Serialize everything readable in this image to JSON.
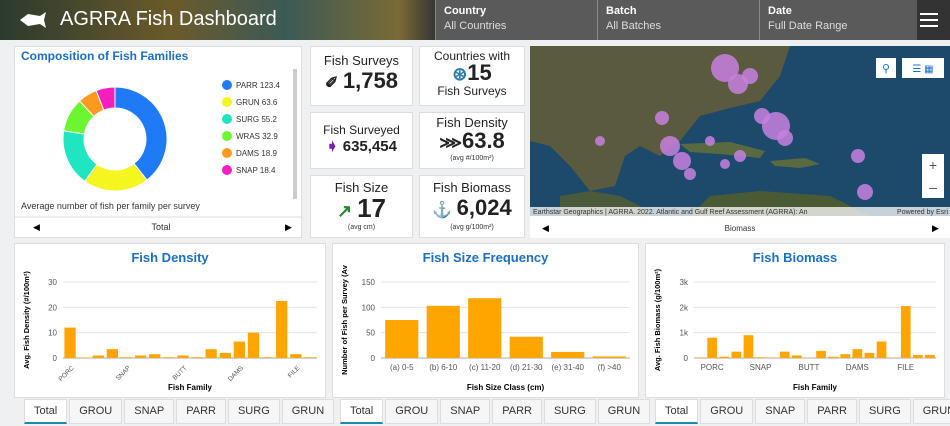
{
  "header": {
    "title": "AGRRA Fish Dashboard",
    "filters": [
      {
        "label": "Country",
        "value": "All Countries"
      },
      {
        "label": "Batch",
        "value": "All Batches"
      },
      {
        "label": "Date",
        "value": "Full Date Range"
      }
    ]
  },
  "cards": [
    {
      "title": "Fish Surveys",
      "value": "1,758"
    },
    {
      "title": "Countries with",
      "value": "15",
      "subtitle": "Fish Surveys"
    },
    {
      "title": "Fish Surveyed",
      "value": "635,454"
    },
    {
      "title": "Fish Density",
      "value": "63.8",
      "subtitle": "(avg #/100m²)"
    },
    {
      "title": "Fish Size",
      "value": "17",
      "subtitle": "(avg cm)"
    },
    {
      "title": "Fish Biomass",
      "value": "6,024",
      "subtitle": "(avg g/100m²)"
    }
  ],
  "map": {
    "attribution": "Earthstar Geographics | AGRRA. 2022. Atlantic and Gulf Reef Assessment (AGRRA): An",
    "powered_by": "Powered by Esri",
    "nav_label": "Biomass"
  },
  "chart_data": [
    {
      "type": "pie",
      "title": "Composition of Fish Families",
      "categories": [
        "PARR",
        "GRUN",
        "SURG",
        "WRAS",
        "DAMS",
        "SNAP"
      ],
      "values": [
        123.4,
        63.6,
        55.2,
        32.9,
        18.9,
        18.4
      ],
      "colors": [
        "#1f7bf5",
        "#f5f51f",
        "#1fe6c0",
        "#6cf531",
        "#ff9a1f",
        "#f51fc0"
      ],
      "caption": "Average number of fish per family per survey",
      "nav_label": "Total"
    },
    {
      "type": "bar",
      "title": "Fish Density",
      "xlabel": "Fish Family",
      "ylabel": "Avg. Fish Density (#/100m²)",
      "categories": [
        "PORC",
        null,
        null,
        null,
        "SNAP",
        null,
        null,
        null,
        "BUTT",
        null,
        null,
        null,
        "DAMS",
        null,
        null,
        null,
        "FILE",
        null
      ],
      "values": [
        12,
        0.2,
        1,
        3.5,
        0.3,
        1,
        1.5,
        0.3,
        1,
        0.3,
        3.5,
        2,
        6.5,
        10,
        0.3,
        22.5,
        1.5,
        0.3
      ],
      "color": "#ffa500",
      "ylim": [
        0,
        30
      ],
      "yticks": [
        0,
        10,
        20,
        30
      ],
      "grid": true,
      "tabs": [
        "Total",
        "GROU",
        "SNAP",
        "PARR",
        "SURG",
        "GRUN"
      ]
    },
    {
      "type": "bar",
      "title": "Fish Size Frequency",
      "xlabel": "Fish Size Class (cm)",
      "ylabel": "Number of Fish per Survey (Av",
      "categories": [
        "(a) 0-5",
        "(b) 6-10",
        "(c) 11-20",
        "(d) 21-30",
        "(e) 31-40",
        "(f) >40"
      ],
      "values": [
        75,
        103,
        118,
        42,
        12,
        3
      ],
      "color": "#ffa500",
      "ylim": [
        0,
        150
      ],
      "yticks": [
        0,
        50,
        100,
        150
      ],
      "grid": true,
      "tabs": [
        "Total",
        "GROU",
        "SNAP",
        "PARR",
        "SURG",
        "GRUN"
      ]
    },
    {
      "type": "bar",
      "title": "Fish Biomass",
      "xlabel": "Fish Family",
      "ylabel": "Avg. Fish Biomass (g/100m²)",
      "categories": [
        null,
        "PORC",
        null,
        null,
        null,
        "SNAP",
        null,
        null,
        null,
        "BUTT",
        null,
        null,
        null,
        "DAMS",
        null,
        null,
        null,
        "FILE",
        null,
        null
      ],
      "values": [
        20,
        800,
        50,
        250,
        900,
        30,
        10,
        250,
        100,
        10,
        280,
        50,
        150,
        350,
        200,
        650,
        10,
        2050,
        120,
        120
      ],
      "color": "#ffa500",
      "ylim": [
        0,
        3000
      ],
      "yticks": [
        0,
        {
          "value": 1000,
          "label": "1k"
        },
        {
          "value": 2000,
          "label": "2k"
        },
        {
          "value": 3000,
          "label": "3k"
        }
      ],
      "grid": true,
      "tabs": [
        "Total",
        "GROU",
        "SNAP",
        "PARR",
        "SURG",
        "GRUN"
      ]
    }
  ]
}
